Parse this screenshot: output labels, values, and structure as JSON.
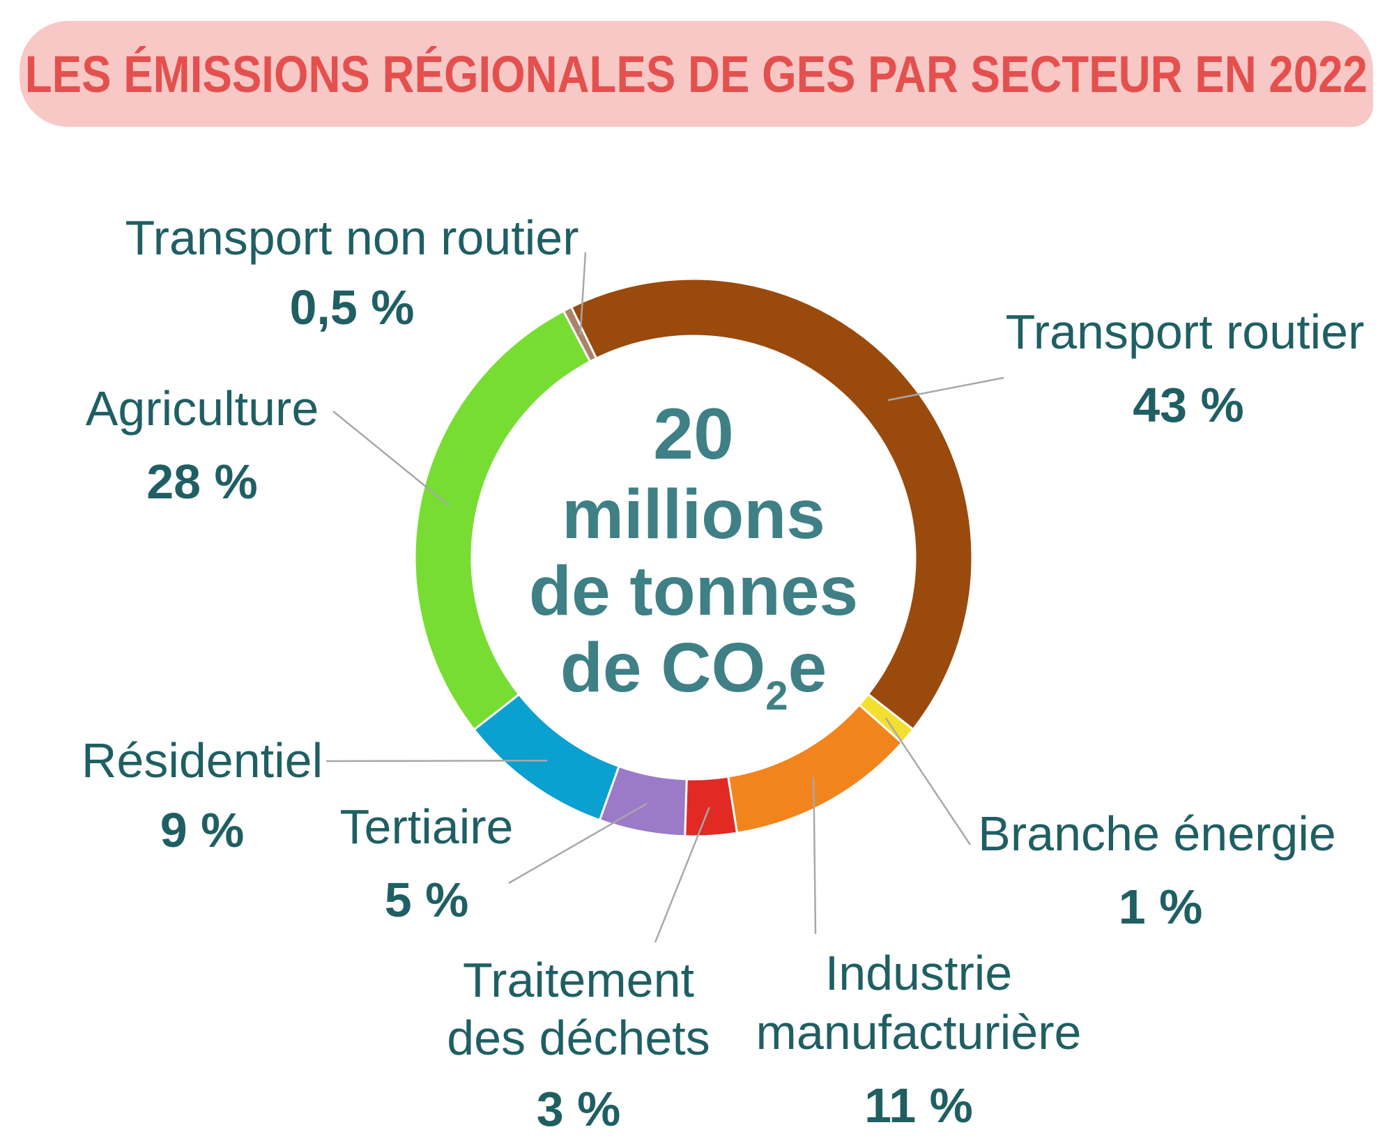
{
  "title": "LES ÉMISSIONS RÉGIONALES DE GES PAR SECTEUR EN 2022",
  "center": {
    "line1": "20",
    "line2": "millions",
    "line3": "de tonnes",
    "line4_main": "de CO",
    "line4_sub": "2",
    "line4_end": "e"
  },
  "chart_data": {
    "type": "pie",
    "title": "LES ÉMISSIONS RÉGIONALES DE GES PAR SECTEUR EN 2022",
    "unit": "%",
    "total_label": "20 millions de tonnes de CO2e",
    "slices": [
      {
        "name": "Transport routier",
        "value": 43,
        "label": "43 %",
        "color": "#9a4a0c"
      },
      {
        "name": "Branche énergie",
        "value": 1,
        "label": "1 %",
        "color": "#f3df2f"
      },
      {
        "name": "Industrie manufacturière",
        "value": 11,
        "label": "11 %",
        "color": "#f2841d"
      },
      {
        "name": "Traitement des déchets",
        "value": 3,
        "label": "3 %",
        "color": "#e12a24"
      },
      {
        "name": "Tertiaire",
        "value": 5,
        "label": "5 %",
        "color": "#9b7ac8"
      },
      {
        "name": "Résidentiel",
        "value": 9,
        "label": "9 %",
        "color": "#0aa0cf"
      },
      {
        "name": "Agriculture",
        "value": 28,
        "label": "28 %",
        "color": "#77dd33"
      },
      {
        "name": "Transport non routier",
        "value": 0.5,
        "label": "0,5 %",
        "color": "#a9836a"
      }
    ]
  }
}
